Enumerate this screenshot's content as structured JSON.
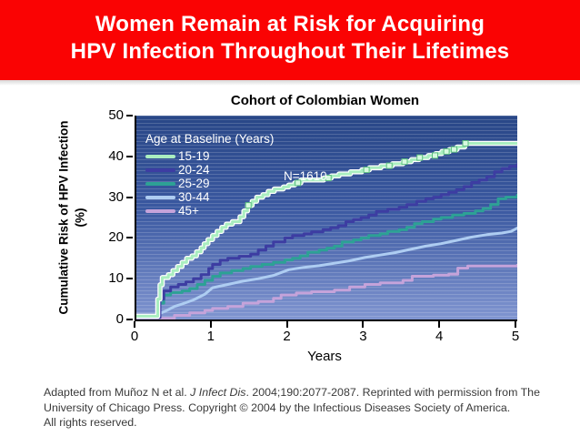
{
  "header": {
    "title_line1": "Women Remain at Risk for Acquiring",
    "title_line2": "HPV Infection Throughout Their Lifetimes",
    "background_color": "#fa0303",
    "text_color": "#ffffff"
  },
  "footer": {
    "line1_pre": "Adapted from Muñoz N et al. ",
    "line1_italic": "J Infect Dis",
    "line1_post": ". 2004;190:2077-2087. Reprinted with permission from The",
    "line2": "University of Chicago Press. Copyright © 2004 by the Infectious Diseases Society of America.",
    "line3": "All rights reserved."
  },
  "chart_data": {
    "type": "line",
    "title": "Cohort of Colombian Women",
    "xlabel": "Years",
    "ylabel_line1": "Cumulative Risk of HPV Infection",
    "ylabel_line2": "(%)",
    "xlim": [
      0,
      5
    ],
    "ylim": [
      0,
      50
    ],
    "xticks": [
      0,
      1,
      2,
      3,
      4,
      5
    ],
    "yticks": [
      0,
      10,
      20,
      30,
      40,
      50
    ],
    "grid": "horizontal-pinstripe",
    "legend_title": "Age at Baseline (Years)",
    "legend_position": "upper-left",
    "annotation": "N=1610",
    "plot_bg_top": "#294787",
    "plot_bg_bottom": "#8095d0",
    "series": [
      {
        "id": "15-19",
        "name": "15-19",
        "color": "#aaeec0",
        "outline": "#ffffff",
        "step": true,
        "marker_fill": "#d6fadf",
        "marker_stroke": "#5abd7f",
        "marker_x": [
          1.47,
          2.12,
          2.52,
          3.02,
          3.32,
          3.52,
          3.72,
          3.92,
          4.07,
          4.17,
          4.32
        ],
        "points": [
          [
            0,
            0.8
          ],
          [
            0.25,
            0.8
          ],
          [
            0.28,
            5
          ],
          [
            0.31,
            8.5
          ],
          [
            0.34,
            10.3
          ],
          [
            0.42,
            11
          ],
          [
            0.48,
            12
          ],
          [
            0.54,
            13
          ],
          [
            0.6,
            14
          ],
          [
            0.66,
            15
          ],
          [
            0.73,
            15.6
          ],
          [
            0.79,
            16.6
          ],
          [
            0.85,
            17.6
          ],
          [
            0.89,
            18.6
          ],
          [
            0.94,
            19.6
          ],
          [
            1.0,
            20.6
          ],
          [
            1.06,
            21.6
          ],
          [
            1.12,
            22.6
          ],
          [
            1.18,
            23.4
          ],
          [
            1.26,
            24
          ],
          [
            1.36,
            25.2
          ],
          [
            1.41,
            26.6
          ],
          [
            1.46,
            28
          ],
          [
            1.52,
            29
          ],
          [
            1.58,
            30
          ],
          [
            1.66,
            30.6
          ],
          [
            1.73,
            31.4
          ],
          [
            1.81,
            32
          ],
          [
            1.93,
            32.5
          ],
          [
            2.0,
            33
          ],
          [
            2.08,
            33.5
          ],
          [
            2.16,
            34.2
          ],
          [
            2.46,
            34.7
          ],
          [
            2.56,
            35.2
          ],
          [
            2.66,
            35.7
          ],
          [
            2.81,
            36.2
          ],
          [
            2.96,
            36.7
          ],
          [
            3.06,
            37.2
          ],
          [
            3.21,
            37.7
          ],
          [
            3.36,
            38.2
          ],
          [
            3.5,
            38.7
          ],
          [
            3.61,
            39.2
          ],
          [
            3.71,
            39.7
          ],
          [
            3.83,
            40.2
          ],
          [
            3.93,
            40.7
          ],
          [
            4.01,
            41.2
          ],
          [
            4.11,
            41.7
          ],
          [
            4.21,
            42.3
          ],
          [
            4.31,
            43.2
          ],
          [
            5,
            43.2
          ]
        ]
      },
      {
        "id": "20-24",
        "name": "20-24",
        "color": "#3d3da2",
        "step": true,
        "points": [
          [
            0,
            0.5
          ],
          [
            0.27,
            0.5
          ],
          [
            0.31,
            5
          ],
          [
            0.36,
            7
          ],
          [
            0.45,
            8
          ],
          [
            0.55,
            8.6
          ],
          [
            0.65,
            9.2
          ],
          [
            0.75,
            10
          ],
          [
            0.85,
            11
          ],
          [
            0.95,
            12.5
          ],
          [
            1.0,
            13.5
          ],
          [
            1.1,
            14.5
          ],
          [
            1.2,
            15
          ],
          [
            1.35,
            15.5
          ],
          [
            1.5,
            16
          ],
          [
            1.6,
            17
          ],
          [
            1.7,
            18
          ],
          [
            1.8,
            19
          ],
          [
            1.95,
            20
          ],
          [
            2.05,
            20.6
          ],
          [
            2.2,
            21
          ],
          [
            2.3,
            21.5
          ],
          [
            2.45,
            22
          ],
          [
            2.55,
            22.5
          ],
          [
            2.65,
            23
          ],
          [
            2.75,
            24
          ],
          [
            2.85,
            24.5
          ],
          [
            2.95,
            25
          ],
          [
            3.05,
            25.6
          ],
          [
            3.15,
            26.5
          ],
          [
            3.3,
            27
          ],
          [
            3.45,
            27.5
          ],
          [
            3.55,
            28.2
          ],
          [
            3.68,
            29
          ],
          [
            3.8,
            29.6
          ],
          [
            3.9,
            30
          ],
          [
            4.0,
            30.6
          ],
          [
            4.1,
            31.2
          ],
          [
            4.2,
            31.8
          ],
          [
            4.3,
            32.6
          ],
          [
            4.4,
            33.6
          ],
          [
            4.5,
            34.2
          ],
          [
            4.6,
            35
          ],
          [
            4.7,
            36.2
          ],
          [
            4.8,
            37
          ],
          [
            4.9,
            37.6
          ],
          [
            5,
            38
          ]
        ]
      },
      {
        "id": "25-29",
        "name": "25-29",
        "color": "#2da195",
        "step": true,
        "points": [
          [
            0,
            0.5
          ],
          [
            0.27,
            0.5
          ],
          [
            0.31,
            4
          ],
          [
            0.36,
            6
          ],
          [
            0.45,
            6.6
          ],
          [
            0.6,
            7
          ],
          [
            0.7,
            7.6
          ],
          [
            0.8,
            8.6
          ],
          [
            0.9,
            9.6
          ],
          [
            1.0,
            10.6
          ],
          [
            1.1,
            11.4
          ],
          [
            1.25,
            12
          ],
          [
            1.4,
            12.5
          ],
          [
            1.5,
            13
          ],
          [
            1.65,
            13.5
          ],
          [
            1.8,
            14
          ],
          [
            1.95,
            14.6
          ],
          [
            2.05,
            15
          ],
          [
            2.15,
            15.6
          ],
          [
            2.25,
            16.5
          ],
          [
            2.4,
            17
          ],
          [
            2.5,
            17.5
          ],
          [
            2.6,
            18
          ],
          [
            2.7,
            19
          ],
          [
            2.85,
            19.5
          ],
          [
            2.95,
            20
          ],
          [
            3.05,
            20.6
          ],
          [
            3.2,
            21
          ],
          [
            3.3,
            21.6
          ],
          [
            3.45,
            22
          ],
          [
            3.55,
            22.6
          ],
          [
            3.65,
            23.5
          ],
          [
            3.75,
            24
          ],
          [
            3.9,
            24.6
          ],
          [
            4.0,
            25
          ],
          [
            4.15,
            25.6
          ],
          [
            4.3,
            26
          ],
          [
            4.45,
            26.6
          ],
          [
            4.55,
            27.2
          ],
          [
            4.65,
            28.2
          ],
          [
            4.75,
            29.6
          ],
          [
            4.85,
            30
          ],
          [
            5,
            30.5
          ]
        ]
      },
      {
        "id": "30-44",
        "name": "30-44",
        "color": "#aecdf2",
        "step": false,
        "points": [
          [
            0,
            0.5
          ],
          [
            0.25,
            1
          ],
          [
            0.4,
            2.2
          ],
          [
            0.5,
            3.2
          ],
          [
            0.6,
            3.8
          ],
          [
            0.75,
            4.8
          ],
          [
            0.9,
            6.2
          ],
          [
            1.0,
            7.8
          ],
          [
            1.2,
            8.6
          ],
          [
            1.4,
            9.4
          ],
          [
            1.6,
            10
          ],
          [
            1.8,
            10.8
          ],
          [
            2.0,
            12.2
          ],
          [
            2.2,
            12.8
          ],
          [
            2.4,
            13.2
          ],
          [
            2.6,
            13.8
          ],
          [
            2.8,
            14.4
          ],
          [
            3.0,
            15.2
          ],
          [
            3.2,
            15.8
          ],
          [
            3.4,
            16.4
          ],
          [
            3.6,
            17.2
          ],
          [
            3.8,
            18
          ],
          [
            4.0,
            18.6
          ],
          [
            4.2,
            19.4
          ],
          [
            4.4,
            20.2
          ],
          [
            4.6,
            20.8
          ],
          [
            4.8,
            21.2
          ],
          [
            4.92,
            21.6
          ],
          [
            5,
            22.4
          ]
        ]
      },
      {
        "id": "45plus",
        "name": "45+",
        "color": "#c5a3da",
        "step": true,
        "points": [
          [
            0,
            0.3
          ],
          [
            0.4,
            0.3
          ],
          [
            0.5,
            1
          ],
          [
            0.7,
            1.6
          ],
          [
            0.9,
            2.2
          ],
          [
            1.0,
            2.7
          ],
          [
            1.2,
            3.2
          ],
          [
            1.4,
            4
          ],
          [
            1.6,
            4.4
          ],
          [
            1.8,
            5.2
          ],
          [
            1.9,
            6
          ],
          [
            2.1,
            6.5
          ],
          [
            2.3,
            6.8
          ],
          [
            2.6,
            7.2
          ],
          [
            2.8,
            8
          ],
          [
            3.0,
            8.6
          ],
          [
            3.2,
            9
          ],
          [
            3.5,
            9.6
          ],
          [
            3.62,
            10.6
          ],
          [
            3.9,
            10.9
          ],
          [
            4.1,
            11.1
          ],
          [
            4.22,
            12.6
          ],
          [
            4.35,
            13.1
          ],
          [
            5,
            13.3
          ]
        ]
      }
    ]
  }
}
